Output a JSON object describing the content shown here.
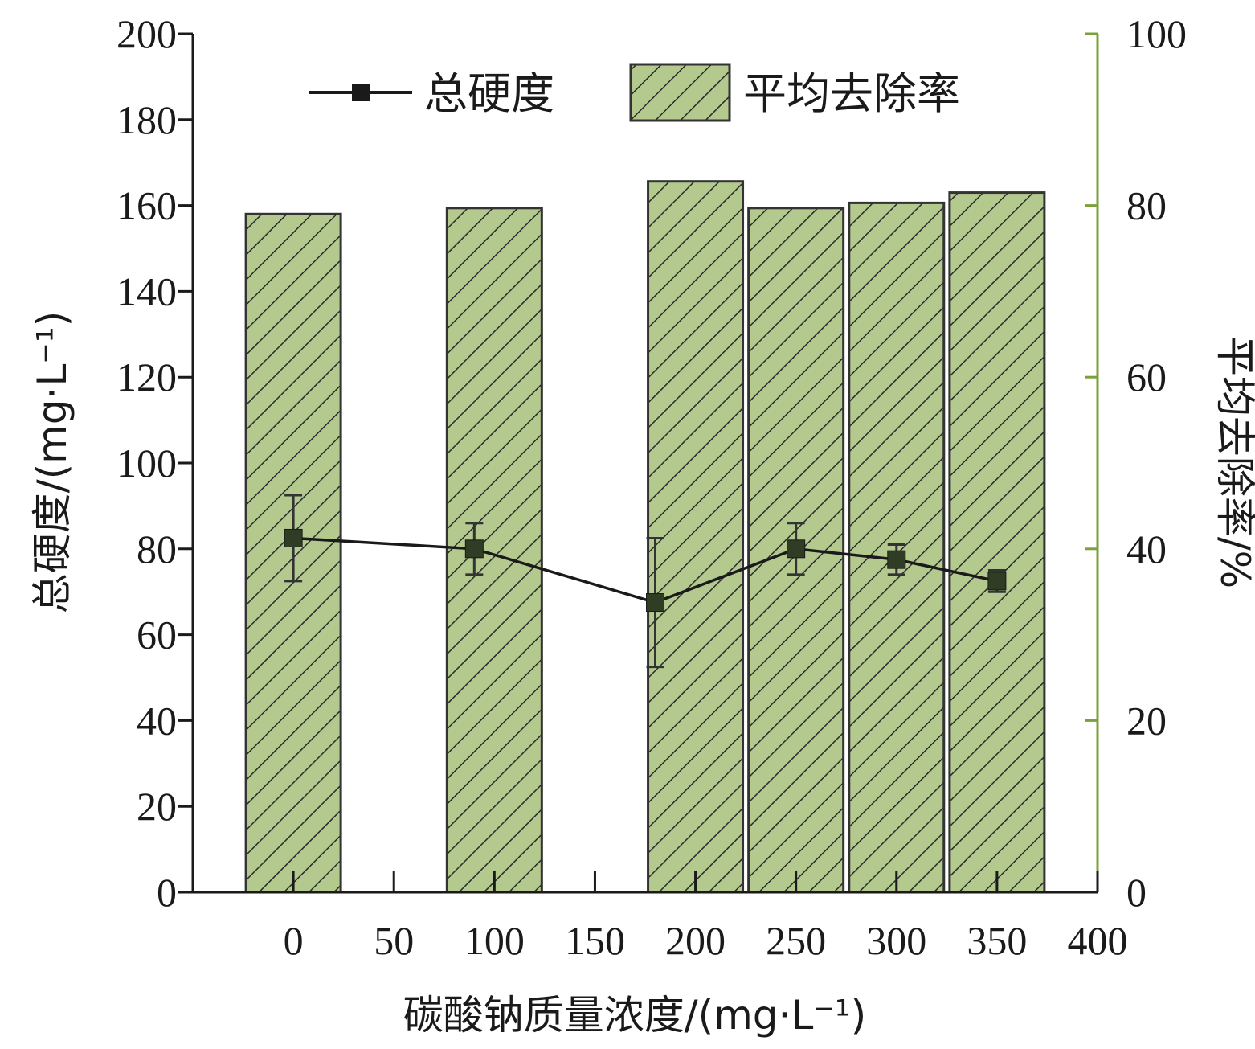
{
  "chart_data": {
    "type": "bar",
    "x_axis": {
      "label": "碳酸钠质量浓度/(mg·L⁻¹)",
      "ticks": [
        0,
        50,
        100,
        150,
        200,
        250,
        300,
        350,
        400
      ],
      "range": [
        -50,
        400
      ]
    },
    "y_left": {
      "label": "总硬度/(mg·L⁻¹)",
      "ticks": [
        0,
        20,
        40,
        60,
        80,
        100,
        120,
        140,
        160,
        180,
        200
      ],
      "range": [
        0,
        200
      ]
    },
    "y_right": {
      "label": "平均去除率/%",
      "ticks": [
        0,
        20,
        40,
        60,
        80,
        100
      ],
      "range": [
        0,
        100
      ],
      "color": "#7ba23a"
    },
    "legend": {
      "position": "top",
      "line_label": "总硬度",
      "bar_label": "平均去除率"
    },
    "bars": {
      "name": "平均去除率",
      "axis": "right",
      "pattern": "diagonal-hatch",
      "fill": "#b3c98e",
      "x": [
        0,
        100,
        200,
        250,
        300,
        350
      ],
      "values": [
        79.0,
        79.7,
        82.8,
        79.7,
        80.3,
        81.5
      ]
    },
    "series": [
      {
        "name": "总硬度",
        "axis": "left",
        "color": "#1a1a1a",
        "marker": "square",
        "marker_color": "#2e3d24",
        "x": [
          0,
          90,
          180,
          250,
          300,
          350
        ],
        "values": [
          82.5,
          80.0,
          67.5,
          80.0,
          77.5,
          72.5
        ],
        "errors": [
          10.0,
          6.0,
          15.0,
          6.0,
          3.5,
          2.5
        ]
      }
    ]
  }
}
